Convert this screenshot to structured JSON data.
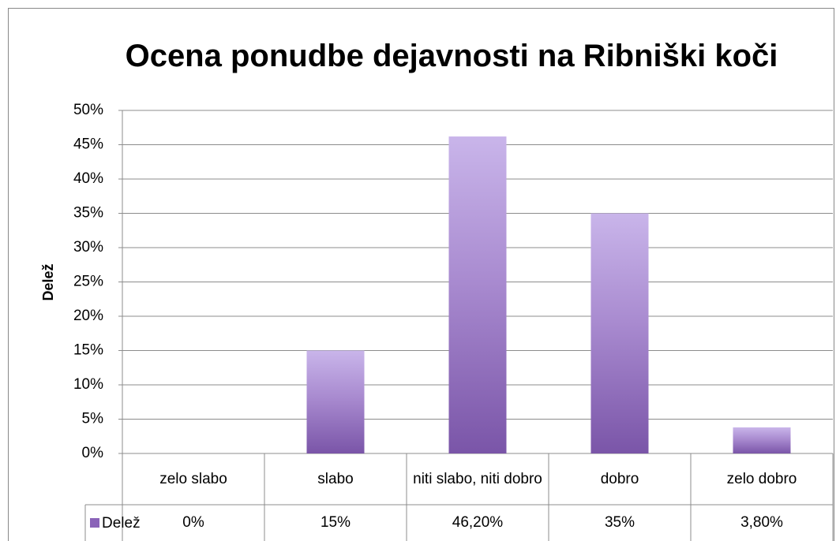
{
  "chart_data": {
    "type": "bar",
    "title": "Ocena ponudbe dejavnosti na Ribniški koči",
    "ylabel": "Delež",
    "categories": [
      "zelo slabo",
      "slabo",
      "niti slabo, niti dobro",
      "dobro",
      "zelo dobro"
    ],
    "series": [
      {
        "name": "Delež",
        "color": "#8a63b8",
        "values": [
          0,
          15,
          46.2,
          35,
          3.8
        ],
        "value_labels": [
          "0%",
          "15%",
          "46,20%",
          "35%",
          "3,80%"
        ]
      }
    ],
    "ylim": [
      0,
      50
    ],
    "yticks": [
      {
        "value": 0,
        "label": "0%"
      },
      {
        "value": 5,
        "label": "5%"
      },
      {
        "value": 10,
        "label": "10%"
      },
      {
        "value": 15,
        "label": "15%"
      },
      {
        "value": 20,
        "label": "20%"
      },
      {
        "value": 25,
        "label": "25%"
      },
      {
        "value": 30,
        "label": "30%"
      },
      {
        "value": 35,
        "label": "35%"
      },
      {
        "value": 40,
        "label": "40%"
      },
      {
        "value": 45,
        "label": "45%"
      },
      {
        "value": 50,
        "label": "50%"
      }
    ],
    "grid": true,
    "data_table": true
  }
}
